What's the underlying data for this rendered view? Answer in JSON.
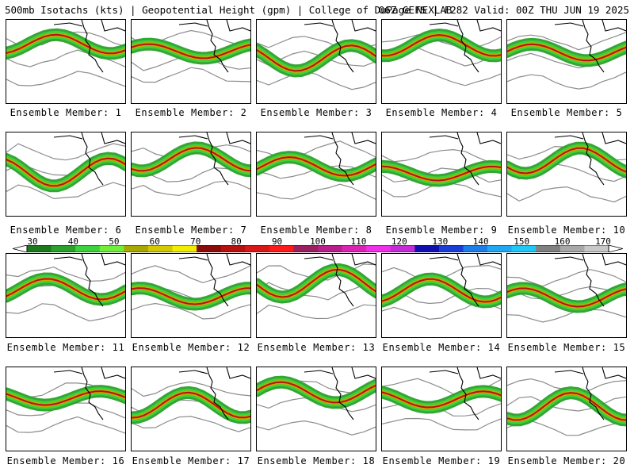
{
  "header": {
    "left": "500mb Isotachs (kts) | Geopotential Height (gpm) | College of DuPage NEXLAB",
    "right": "06Z GEFS | F282 Valid: 00Z THU JUN 19 2025"
  },
  "colorbar": {
    "ticks": [
      "30",
      "40",
      "50",
      "60",
      "70",
      "80",
      "90",
      "100",
      "110",
      "120",
      "130",
      "140",
      "150",
      "160",
      "170"
    ],
    "colors": [
      "#1c7a1c",
      "#2aa12a",
      "#3cd23c",
      "#6fee3a",
      "#a8a800",
      "#d4c800",
      "#f0ee00",
      "#8b0a0a",
      "#b80f0f",
      "#d81818",
      "#ff1a1a",
      "#9a2060",
      "#b81f8a",
      "#dc24b4",
      "#f030e8",
      "#c42cd8",
      "#1010b0",
      "#1c3ed8",
      "#1e7ee8",
      "#22a8f0",
      "#20c8f8",
      "#808080",
      "#a8a8a8",
      "#c8c8c8"
    ]
  },
  "panel_label_prefix": "Ensemble Member: ",
  "members": [
    {
      "label": "Ensemble Member: 1"
    },
    {
      "label": "Ensemble Member: 2"
    },
    {
      "label": "Ensemble Member: 3"
    },
    {
      "label": "Ensemble Member: 4"
    },
    {
      "label": "Ensemble Member: 5"
    },
    {
      "label": "Ensemble Member: 6"
    },
    {
      "label": "Ensemble Member: 7"
    },
    {
      "label": "Ensemble Member: 8"
    },
    {
      "label": "Ensemble Member: 9"
    },
    {
      "label": "Ensemble Member: 10"
    },
    {
      "label": "Ensemble Member: 11"
    },
    {
      "label": "Ensemble Member: 12"
    },
    {
      "label": "Ensemble Member: 13"
    },
    {
      "label": "Ensemble Member: 14"
    },
    {
      "label": "Ensemble Member: 15"
    },
    {
      "label": "Ensemble Member: 16"
    },
    {
      "label": "Ensemble Member: 17"
    },
    {
      "label": "Ensemble Member: 18"
    },
    {
      "label": "Ensemble Member: 19"
    },
    {
      "label": "Ensemble Member: 20"
    }
  ],
  "colors": {
    "isotach_low": "#2aa12a",
    "isotach_mid": "#3cd23c",
    "isotach_high": "#c8a800",
    "isotach_max": "#b80f0f",
    "height_contour": "#8c8c8c",
    "coastline": "#000000"
  }
}
